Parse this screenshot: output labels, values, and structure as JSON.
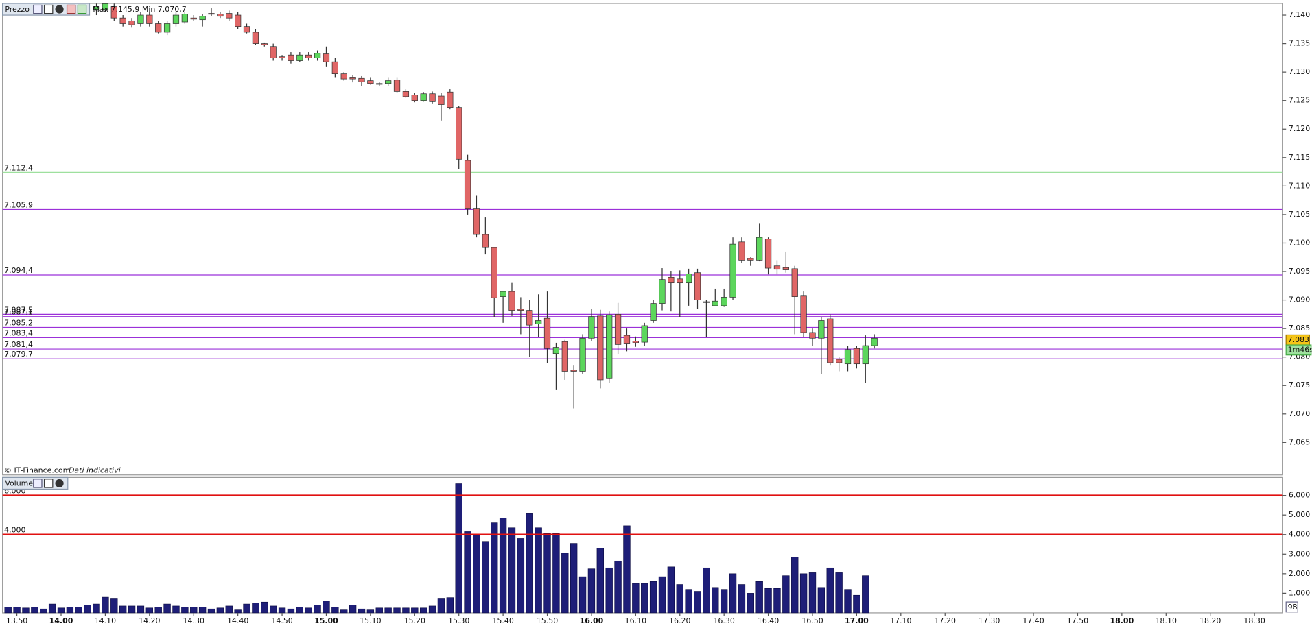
{
  "chart_data": [
    {
      "type": "candlestick",
      "panel_label": "Prezzo",
      "info": "Max 7.145,9 Min 7.070,7",
      "source": "© IT-Finance.com",
      "note": "Dati indicativi",
      "up_color": "#5cd65c",
      "down_color": "#e06666",
      "x": [
        848,
        850,
        852,
        854,
        856,
        858,
        860,
        862,
        864,
        866,
        868,
        870,
        872,
        874,
        876,
        878,
        880,
        882,
        884,
        886,
        888,
        890,
        892,
        894,
        896,
        898,
        900,
        902,
        904,
        906,
        908,
        910,
        912,
        914,
        916,
        918,
        920,
        922,
        924,
        926,
        928,
        930,
        932,
        934,
        936,
        938,
        940,
        942,
        944,
        946,
        948,
        950,
        952,
        954,
        956,
        958,
        960,
        962,
        964,
        966,
        968,
        970,
        972,
        974,
        976,
        978,
        980,
        982,
        984,
        986,
        988,
        990,
        992,
        994,
        996,
        998,
        1000,
        1002,
        1004,
        1006,
        1008,
        1010,
        1012,
        1014,
        1016,
        1018,
        1020,
        1022,
        1024
      ],
      "open": [
        7141,
        7141,
        7141.5,
        7139.5,
        7139,
        7138.5,
        7140,
        7138.5,
        7137,
        7138.5,
        7138.8,
        7139.5,
        7139.2,
        7140.3,
        7140.2,
        7140.3,
        7140,
        7138,
        7137,
        7135,
        7134.5,
        7132.7,
        7133,
        7132,
        7133,
        7132.5,
        7133.2,
        7131.8,
        7129.7,
        7129,
        7128.9,
        7128.5,
        7128,
        7128,
        7128.6,
        7126.6,
        7126,
        7125,
        7126.2,
        7125.8,
        7126.5,
        7123.8,
        7114.5,
        7106,
        7101.5,
        7099.2,
        7090.6,
        7091.5,
        7088.4,
        7088.2,
        7085.8,
        7086.8,
        7080.6,
        7082.7,
        7077.7,
        7077.5,
        7083.3,
        7087.2,
        7076.2,
        7087.5,
        7083.8,
        7082.8,
        7082.6,
        7086.4,
        7089.4,
        7094,
        7093.7,
        7093,
        7094.8,
        7089.7,
        7089,
        7089,
        7090.5,
        7100.2,
        7097.3,
        7097,
        7100.7,
        7096,
        7095.7,
        7095.5,
        7090.7,
        7084.3,
        7083.3,
        7086.7,
        7079.6,
        7078.8,
        7081.5,
        7078.8,
        7082
      ],
      "high": [
        7142,
        7142,
        7142,
        7140,
        7139.5,
        7140.5,
        7140.5,
        7139,
        7139,
        7140.5,
        7140.6,
        7140,
        7140.2,
        7141.2,
        7140.5,
        7140.8,
        7140.5,
        7138.5,
        7137.5,
        7135.2,
        7135,
        7133,
        7133.5,
        7133.5,
        7133.5,
        7133.8,
        7134.5,
        7132.5,
        7130,
        7129.5,
        7129.3,
        7129,
        7128.3,
        7129,
        7129,
        7127,
        7126.3,
        7126.5,
        7126.6,
        7126.3,
        7127,
        7124,
        7115.5,
        7108.3,
        7104.5,
        7099.3,
        7091.6,
        7093,
        7090.5,
        7090,
        7091,
        7091.5,
        7082.5,
        7083,
        7078.5,
        7084,
        7088.5,
        7088.3,
        7088,
        7089.5,
        7085,
        7083.6,
        7086,
        7090,
        7095.6,
        7095,
        7095.2,
        7095.5,
        7095.5,
        7090,
        7092,
        7092,
        7101,
        7101,
        7097.5,
        7103.5,
        7101,
        7097,
        7098.5,
        7096,
        7091.5,
        7085,
        7087,
        7087.5,
        7080,
        7082,
        7082,
        7083.8,
        7084
      ],
      "low": [
        7140,
        7140.5,
        7139,
        7138,
        7137.8,
        7138,
        7138,
        7136.8,
        7136.5,
        7138,
        7138.5,
        7139,
        7138,
        7139.8,
        7139.5,
        7139,
        7137.5,
        7136.8,
        7134.8,
        7134.5,
        7132,
        7132,
        7131.5,
        7131.8,
        7132,
        7132,
        7131,
        7129,
        7128.5,
        7128.2,
        7127.5,
        7127.8,
        7127.5,
        7127.5,
        7126.3,
        7125.5,
        7124.7,
        7124.8,
        7124.5,
        7121.5,
        7123.5,
        7113,
        7105,
        7101,
        7098,
        7087,
        7086,
        7087.2,
        7084,
        7080,
        7083.5,
        7079,
        7074.2,
        7076,
        7071,
        7077,
        7082.8,
        7074.5,
        7075.5,
        7080.5,
        7081,
        7081.8,
        7082,
        7086,
        7088.2,
        7088,
        7087,
        7089,
        7088.5,
        7083.5,
        7089,
        7088.8,
        7090,
        7096.5,
        7096,
        7096.8,
        7094.5,
        7094.5,
        7094.8,
        7084,
        7083.5,
        7082,
        7077,
        7078.5,
        7077.5,
        7077.5,
        7078,
        7075.5,
        7081.5
      ],
      "close": [
        7141.5,
        7142,
        7139.5,
        7138.5,
        7138.3,
        7140,
        7138.5,
        7137,
        7138.5,
        7140,
        7140.2,
        7139.3,
        7139.8,
        7140.2,
        7139.8,
        7139.5,
        7138,
        7137,
        7135,
        7134.8,
        7132.5,
        7132.5,
        7132,
        7133,
        7132.5,
        7133.3,
        7131.8,
        7129.7,
        7128.8,
        7128.8,
        7128.3,
        7128,
        7127.9,
        7128.5,
        7126.6,
        7125.7,
        7125,
        7126.2,
        7124.8,
        7124.3,
        7123.8,
        7114.7,
        7106,
        7101.5,
        7099.2,
        7090.4,
        7091.5,
        7088.2,
        7088.2,
        7085.6,
        7086.4,
        7081.5,
        7081.7,
        7077.5,
        7077.5,
        7083.3,
        7087.1,
        7076,
        7087.4,
        7082.2,
        7082.3,
        7082.5,
        7085.5,
        7089.4,
        7093.6,
        7093,
        7093,
        7094.6,
        7090,
        7089.6,
        7089.8,
        7090.5,
        7099.8,
        7097,
        7097,
        7101,
        7095.6,
        7095.4,
        7095.3,
        7090.6,
        7084.3,
        7083.3,
        7086.4,
        7079,
        7079,
        7081.3,
        7078.8,
        7082,
        7083.3
      ],
      "xlim": [
        826.75,
        1116.4
      ],
      "ylim": [
        7059.3,
        7142.05
      ],
      "yticks": [
        {
          "value": 7065,
          "label": "7.065"
        },
        {
          "value": 7070,
          "label": "7.070"
        },
        {
          "value": 7075,
          "label": "7.075"
        },
        {
          "value": 7080,
          "label": "7.080"
        },
        {
          "value": 7085,
          "label": "7.085"
        },
        {
          "value": 7090,
          "label": "7.090"
        },
        {
          "value": 7095,
          "label": "7.095"
        },
        {
          "value": 7100,
          "label": "7.100"
        },
        {
          "value": 7105,
          "label": "7.105"
        },
        {
          "value": 7110,
          "label": "7.110"
        },
        {
          "value": 7115,
          "label": "7.115"
        },
        {
          "value": 7120,
          "label": "7.120"
        },
        {
          "value": 7125,
          "label": "7.125"
        },
        {
          "value": 7130,
          "label": "7.130"
        },
        {
          "value": 7135,
          "label": "7.135"
        },
        {
          "value": 7140,
          "label": "7.140"
        }
      ],
      "levels": [
        {
          "value": 7112.4,
          "label": "7.112,4",
          "color": "#9ee09e"
        },
        {
          "value": 7105.9,
          "label": "7.105,9",
          "color": "#9b30d9"
        },
        {
          "value": 7094.4,
          "label": "7.094,4",
          "color": "#9b30d9"
        },
        {
          "value": 7087.5,
          "label": "7.087,5",
          "color": "#9b30d9"
        },
        {
          "value": 7087.1,
          "label": "7.087,1",
          "color": "#9b30d9"
        },
        {
          "value": 7085.2,
          "label": "7.085,2",
          "color": "#9b30d9"
        },
        {
          "value": 7083.4,
          "label": "7.083,4",
          "color": "#9b30d9"
        },
        {
          "value": 7081.4,
          "label": "7.081,4",
          "color": "#9b30d9"
        },
        {
          "value": 7079.7,
          "label": "7.079,7",
          "color": "#9b30d9"
        }
      ],
      "last_price": {
        "value": 7083,
        "label": "7.083"
      },
      "timer": "1m46s"
    },
    {
      "type": "bar",
      "panel_label": "Volume",
      "badge": "98",
      "color": "#1e1e78",
      "x": [
        828,
        830,
        832,
        834,
        836,
        838,
        840,
        842,
        844,
        846,
        848,
        850,
        852,
        854,
        856,
        858,
        860,
        862,
        864,
        866,
        868,
        870,
        872,
        874,
        876,
        878,
        880,
        882,
        884,
        886,
        888,
        890,
        892,
        894,
        896,
        898,
        900,
        902,
        904,
        906,
        908,
        910,
        912,
        914,
        916,
        918,
        920,
        922,
        924,
        926,
        928,
        930,
        932,
        934,
        936,
        938,
        940,
        942,
        944,
        946,
        948,
        950,
        952,
        954,
        956,
        958,
        960,
        962,
        964,
        966,
        968,
        970,
        972,
        974,
        976,
        978,
        980,
        982,
        984,
        986,
        988,
        990,
        992,
        994,
        996,
        998,
        1000,
        1002,
        1004,
        1006,
        1008,
        1010,
        1012,
        1014,
        1016,
        1018,
        1020,
        1022
      ],
      "values": [
        300,
        300,
        250,
        300,
        200,
        450,
        250,
        300,
        300,
        400,
        450,
        800,
        750,
        350,
        350,
        350,
        250,
        300,
        450,
        350,
        300,
        300,
        300,
        200,
        250,
        350,
        150,
        450,
        500,
        550,
        350,
        250,
        200,
        300,
        250,
        400,
        600,
        300,
        150,
        400,
        200,
        150,
        250,
        250,
        250,
        250,
        250,
        250,
        350,
        750,
        780,
        6600,
        4150,
        4000,
        3650,
        4600,
        4850,
        4350,
        3800,
        5100,
        4350,
        4050,
        4050,
        3050,
        3550,
        1850,
        2250,
        3300,
        2300,
        2650,
        4450,
        1500,
        1500,
        1600,
        1850,
        2350,
        1450,
        1200,
        1100,
        2300,
        1300,
        1200,
        2000,
        1450,
        1000,
        1600,
        1250,
        1250,
        1900,
        2850,
        2000,
        2050,
        1300,
        2300,
        2050,
        1200,
        900,
        1900
      ],
      "xlim": [
        826.75,
        1116.4
      ],
      "ylim": [
        0,
        6920
      ],
      "yticks": [
        {
          "value": 1000,
          "label": "1.000"
        },
        {
          "value": 2000,
          "label": "2.000"
        },
        {
          "value": 3000,
          "label": "3.000"
        },
        {
          "value": 4000,
          "label": "4.000"
        },
        {
          "value": 5000,
          "label": "5.000"
        },
        {
          "value": 6000,
          "label": "6.000"
        }
      ],
      "levels": [
        {
          "value": 6000,
          "label": "6.000",
          "color": "#e01010"
        },
        {
          "value": 4000,
          "label": "4.000",
          "color": "#e01010"
        }
      ],
      "xticks": [
        {
          "value": 830,
          "label": "13.50"
        },
        {
          "value": 840,
          "label": "14.00"
        },
        {
          "value": 850,
          "label": "14.10"
        },
        {
          "value": 860,
          "label": "14.20"
        },
        {
          "value": 870,
          "label": "14.30"
        },
        {
          "value": 880,
          "label": "14.40"
        },
        {
          "value": 890,
          "label": "14.50"
        },
        {
          "value": 900,
          "label": "15.00"
        },
        {
          "value": 910,
          "label": "15.10"
        },
        {
          "value": 920,
          "label": "15.20"
        },
        {
          "value": 930,
          "label": "15.30"
        },
        {
          "value": 940,
          "label": "15.40"
        },
        {
          "value": 950,
          "label": "15.50"
        },
        {
          "value": 960,
          "label": "16.00"
        },
        {
          "value": 970,
          "label": "16.10"
        },
        {
          "value": 980,
          "label": "16.20"
        },
        {
          "value": 990,
          "label": "16.30"
        },
        {
          "value": 1000,
          "label": "16.40"
        },
        {
          "value": 1010,
          "label": "16.50"
        },
        {
          "value": 1020,
          "label": "17.00"
        },
        {
          "value": 1030,
          "label": "17.10"
        },
        {
          "value": 1040,
          "label": "17.20"
        },
        {
          "value": 1050,
          "label": "17.30"
        },
        {
          "value": 1060,
          "label": "17.40"
        },
        {
          "value": 1070,
          "label": "17.50"
        },
        {
          "value": 1080,
          "label": "18.00"
        },
        {
          "value": 1090,
          "label": "18.10"
        },
        {
          "value": 1100,
          "label": "18.20"
        },
        {
          "value": 1110,
          "label": "18.30"
        }
      ]
    }
  ]
}
